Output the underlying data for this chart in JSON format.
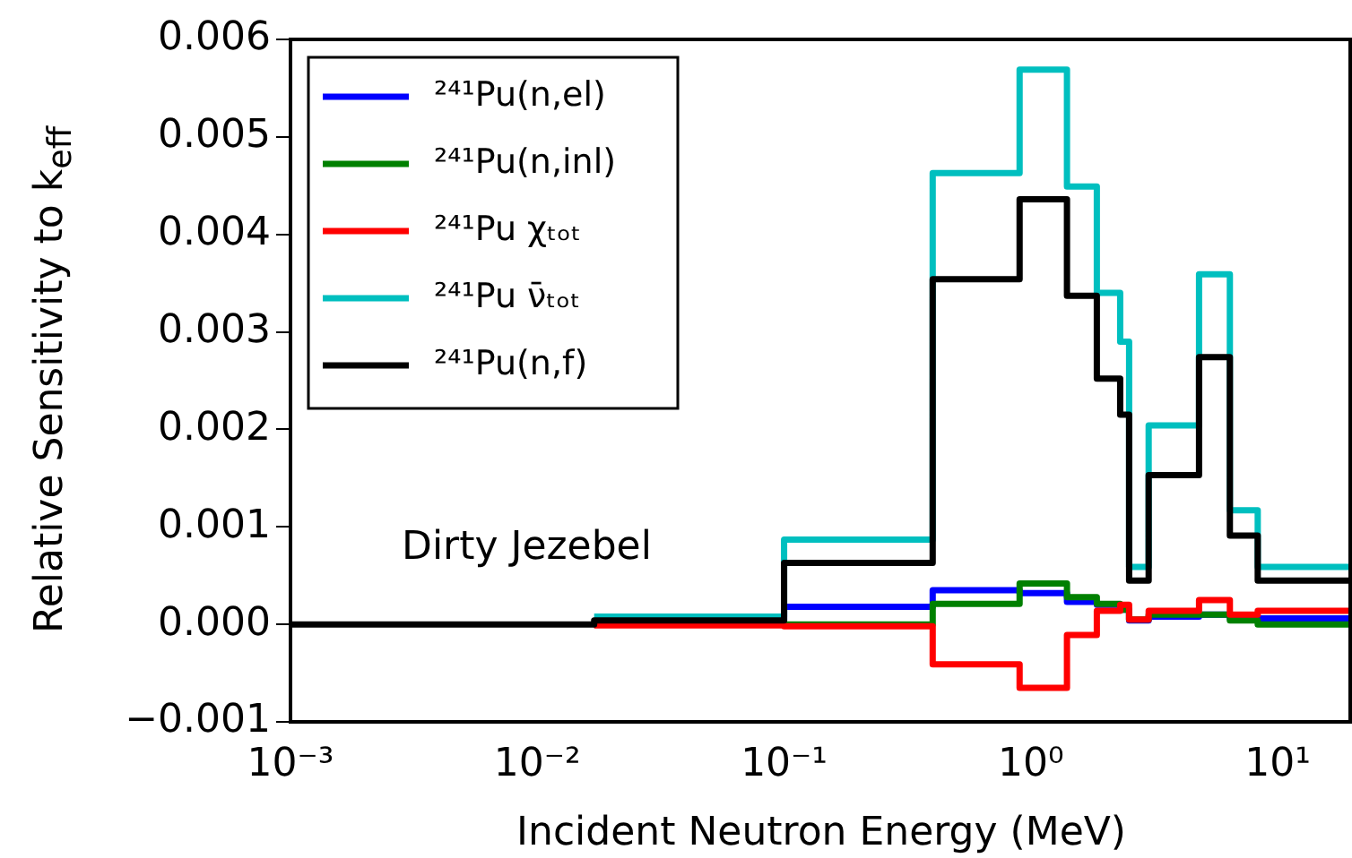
{
  "chart_data": {
    "type": "step",
    "xlabel": "Incident Neutron Energy (MeV)",
    "ylabel": "Relative Sensitivity to k$_{eff}$",
    "annotations": [
      "Dirty Jezebel"
    ],
    "x": [
      0.001,
      0.003,
      0.017,
      0.1,
      0.4,
      0.9,
      1.4,
      1.85,
      2.3,
      2.5,
      3.0,
      4.8,
      6.4,
      8.3,
      20
    ],
    "log": "x",
    "xlim": [
      0.001,
      20
    ],
    "xticks": [
      {
        "value": 0.001,
        "label": "10⁻³"
      },
      {
        "value": 0.01,
        "label": "10⁻²"
      },
      {
        "value": 0.1,
        "label": "10⁻¹"
      },
      {
        "value": 1,
        "label": "10⁰"
      },
      {
        "value": 10,
        "label": "10¹"
      }
    ],
    "ylim": [
      -0.001,
      0.006
    ],
    "yticks": [
      {
        "value": -0.001,
        "label": "−0.001"
      },
      {
        "value": 0,
        "label": "0.000"
      },
      {
        "value": 0.001,
        "label": "0.001"
      },
      {
        "value": 0.002,
        "label": "0.002"
      },
      {
        "value": 0.003,
        "label": "0.003"
      },
      {
        "value": 0.004,
        "label": "0.004"
      },
      {
        "value": 0.005,
        "label": "0.005"
      },
      {
        "value": 0.006,
        "label": "0.006"
      }
    ],
    "grid": false,
    "legend": "top left",
    "line_style": "solid",
    "marker": "none",
    "series": [
      {
        "name": "²⁴¹Pu(n,el)",
        "color": "#0000ff",
        "values": [
          null,
          null,
          0,
          0.00018,
          0.00035,
          0.00032,
          0.00023,
          0.0002,
          0.00015,
          4e-05,
          8e-05,
          0.0001,
          6e-05,
          6e-05,
          6e-05
        ]
      },
      {
        "name": "²⁴¹Pu(n,inl)",
        "color": "#008000",
        "values": [
          null,
          null,
          0,
          0,
          0.00021,
          0.00042,
          0.00028,
          0.00021,
          0.00015,
          5e-05,
          0.0001,
          0.0001,
          4e-05,
          0,
          0
        ]
      },
      {
        "name": "²⁴¹Pu χₜₒₜ",
        "color": "#ff0000",
        "values": [
          null,
          null,
          -1e-05,
          -2e-05,
          -0.00041,
          -0.00065,
          -0.00011,
          0.00014,
          0.0002,
          5e-05,
          0.00014,
          0.00025,
          0.0001,
          0.00014,
          0.00014
        ]
      },
      {
        "name": "²⁴¹Pu ν̄ₜₒₜ",
        "color": "#00bfbf",
        "values": [
          null,
          null,
          8e-05,
          0.00087,
          0.00463,
          0.00569,
          0.00449,
          0.0034,
          0.0029,
          0.00059,
          0.00204,
          0.00359,
          0.00117,
          0.00059,
          0.00059
        ]
      },
      {
        "name": "²⁴¹Pu(n,f)",
        "color": "#000000",
        "values": [
          0,
          0,
          4e-05,
          0.00063,
          0.00354,
          0.00436,
          0.00337,
          0.00252,
          0.00215,
          0.00045,
          0.00153,
          0.00274,
          0.00091,
          0.00045,
          0.00045
        ]
      }
    ]
  }
}
